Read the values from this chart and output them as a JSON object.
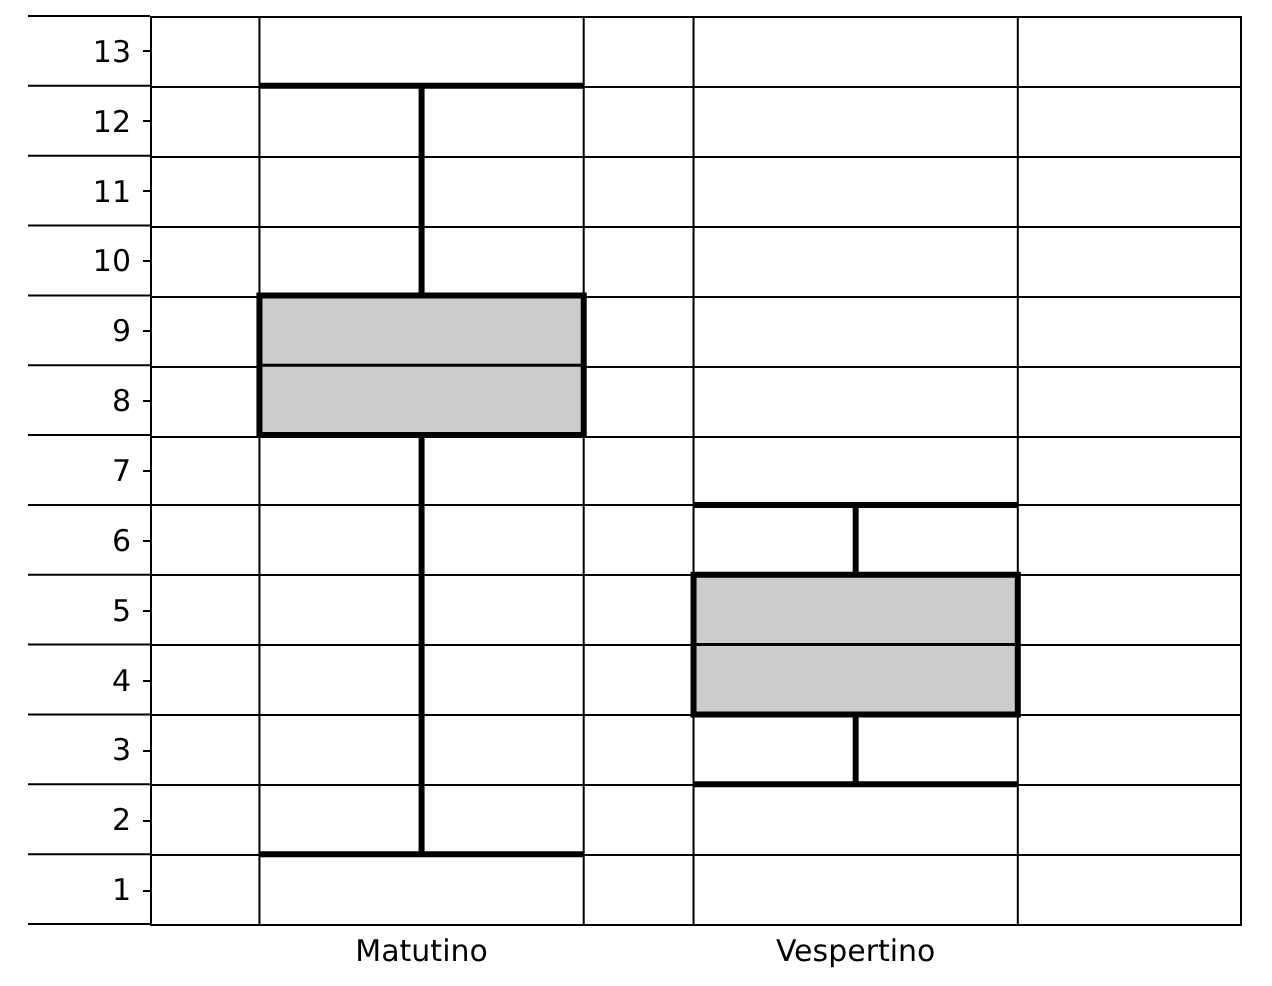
{
  "chart_data": {
    "type": "box",
    "categories": [
      "Matutino",
      "Vespertino"
    ],
    "boxes": [
      {
        "low": 1.5,
        "q1": 7.5,
        "median": 8.5,
        "q3": 9.5,
        "high": 12.5
      },
      {
        "low": 2.5,
        "q1": 3.5,
        "median": 4.5,
        "q3": 5.5,
        "high": 6.5
      }
    ],
    "color": "#cccccc",
    "ylim": [
      0.5,
      13.5
    ],
    "yticks": [
      1,
      2,
      3,
      4,
      5,
      6,
      7,
      8,
      9,
      10,
      11,
      12,
      13,
      {
        "value": 0.5,
        "label": null
      },
      {
        "value": 1.5,
        "label": null
      },
      {
        "value": 2.5,
        "label": null
      },
      {
        "value": 3.5,
        "label": null
      },
      {
        "value": 4.5,
        "label": null
      },
      {
        "value": 5.5,
        "label": null
      },
      {
        "value": 6.5,
        "label": null
      },
      {
        "value": 7.5,
        "label": null
      },
      {
        "value": 8.5,
        "label": null
      },
      {
        "value": 9.5,
        "label": null
      },
      {
        "value": 10.5,
        "label": null
      },
      {
        "value": 11.5,
        "label": null
      },
      {
        "value": 12.5,
        "label": null
      },
      {
        "value": 13.5,
        "label": null
      }
    ],
    "grid": true
  }
}
